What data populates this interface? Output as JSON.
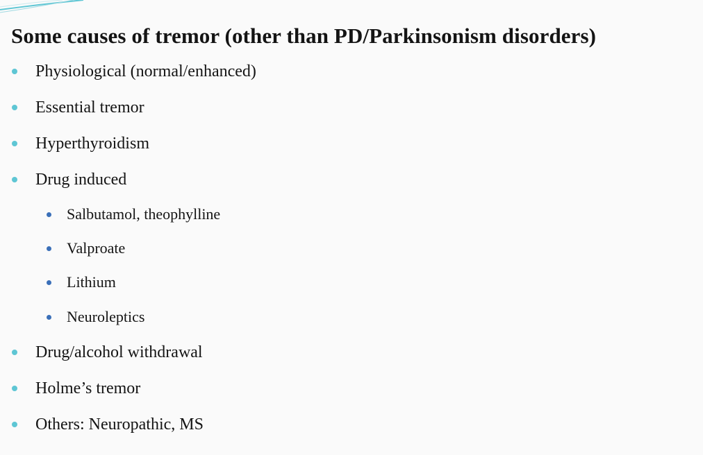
{
  "slide": {
    "title": "Some causes of tremor (other than PD/Parkinsonism disorders)",
    "colors": {
      "bullet_level1": "#5ec6d4",
      "bullet_level2": "#3a6fb8",
      "text": "#141414",
      "background": "#fafafa"
    },
    "bullets": [
      {
        "text": "Physiological (normal/enhanced)",
        "level": 1
      },
      {
        "text": "Essential tremor",
        "level": 1
      },
      {
        "text": "Hyperthyroidism",
        "level": 1
      },
      {
        "text": "Drug induced",
        "level": 1
      },
      {
        "text": "Salbutamol, theophylline",
        "level": 2
      },
      {
        "text": "Valproate",
        "level": 2
      },
      {
        "text": "Lithium",
        "level": 2
      },
      {
        "text": "Neuroleptics",
        "level": 2
      },
      {
        "text": "Drug/alcohol withdrawal",
        "level": 1
      },
      {
        "text": "Holme’s tremor",
        "level": 1
      },
      {
        "text": "Others: Neuropathic, MS",
        "level": 1
      }
    ]
  }
}
